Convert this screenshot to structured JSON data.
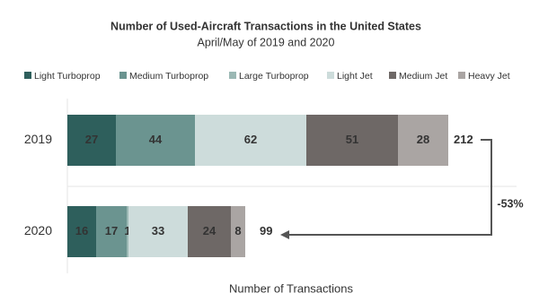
{
  "chart_data": {
    "type": "stacked-bar-horizontal",
    "title": "Number of Used-Aircraft Transactions in the United States",
    "subtitle": "April/May of 2019 and 2020",
    "categories": [
      "2019",
      "2020"
    ],
    "series": [
      {
        "name": "Light Turboprop",
        "color": "#2e5f5c",
        "values": [
          27,
          16
        ]
      },
      {
        "name": "Medium Turboprop",
        "color": "#6b9490",
        "values": [
          44,
          17
        ]
      },
      {
        "name": "Large Turboprop",
        "color": "#9bb8b4",
        "values": [
          0,
          1
        ]
      },
      {
        "name": "Light Jet",
        "color": "#cddcdb",
        "values": [
          62,
          33
        ]
      },
      {
        "name": "Medium Jet",
        "color": "#6e6866",
        "values": [
          51,
          24
        ]
      },
      {
        "name": "Heavy Jet",
        "color": "#aaa5a3",
        "values": [
          28,
          8
        ]
      }
    ],
    "totals": [
      212,
      99
    ],
    "annotation": "-53%",
    "x_label": "Number of Transactions",
    "xlim": [
      0,
      250
    ]
  }
}
